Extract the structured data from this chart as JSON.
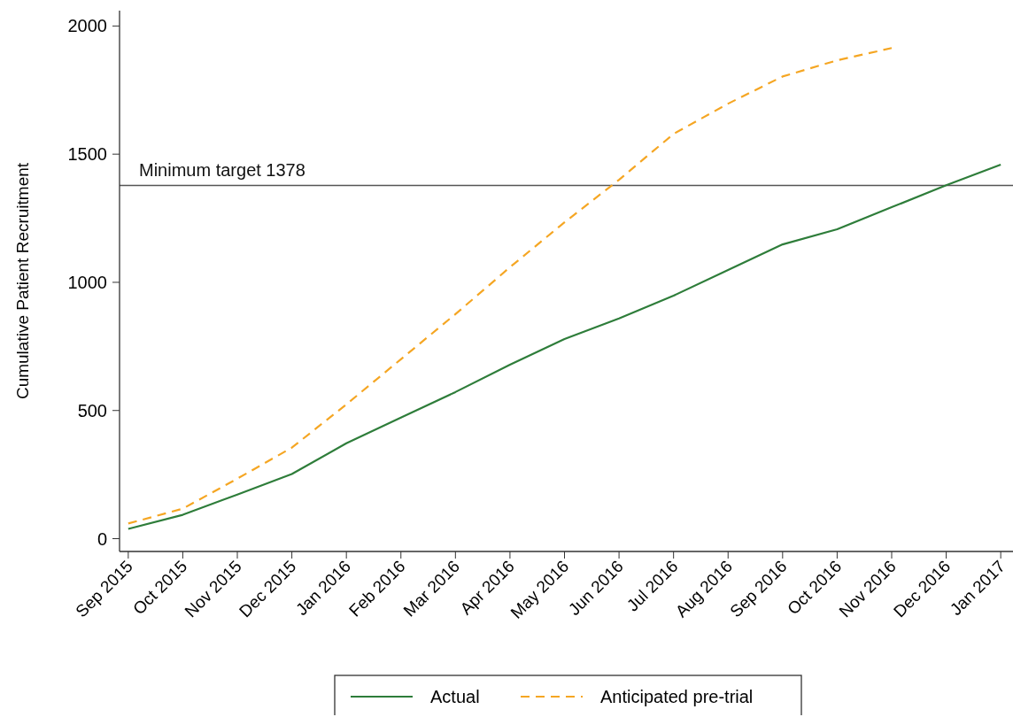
{
  "chart_data": {
    "type": "line",
    "ylabel": "Cumulative Patient Recruitment",
    "categories": [
      "Sep 2015",
      "Oct 2015",
      "Nov 2015",
      "Dec 2015",
      "Jan 2016",
      "Feb 2016",
      "Mar 2016",
      "Apr 2016",
      "May 2016",
      "Jun 2016",
      "Jul 2016",
      "Aug 2016",
      "Sep 2016",
      "Oct 2016",
      "Nov 2016",
      "Dec 2016",
      "Jan 2017"
    ],
    "series": [
      {
        "name": "Actual",
        "color": "#2e7d3a",
        "line_style": "solid",
        "values": [
          38,
          93,
          172,
          252,
          372,
          472,
          572,
          679,
          779,
          859,
          948,
          1048,
          1148,
          1207,
          1293,
          1379,
          1459
        ]
      },
      {
        "name": "Anticipated pre-trial",
        "color": "#f5a623",
        "line_style": "dashed",
        "values": [
          59,
          117,
          234,
          355,
          524,
          700,
          876,
          1059,
          1234,
          1400,
          1579,
          1697,
          1803,
          1866,
          1914,
          null,
          null
        ]
      }
    ],
    "ylim": [
      -50,
      2060
    ],
    "yticks": [
      0,
      500,
      1000,
      1500,
      2000
    ],
    "grid": false,
    "legend": "bottom",
    "ref_lines": [
      {
        "axis": "y",
        "value": 1378,
        "label": "Minimum target 1378",
        "color": "#555555",
        "line_style": "solid"
      }
    ]
  }
}
